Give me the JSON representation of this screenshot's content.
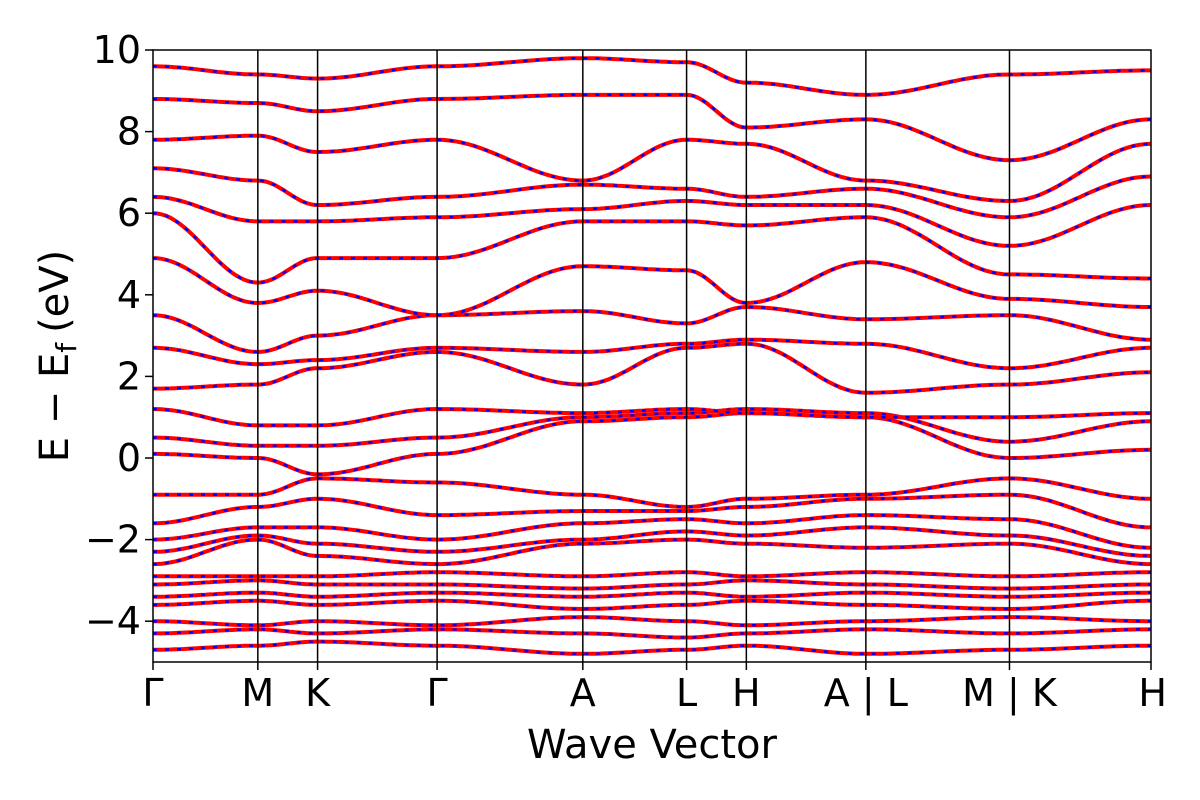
{
  "chart_data": {
    "type": "line",
    "title": "",
    "xlabel": "Wave Vector",
    "ylabel": "E − E_f (eV)",
    "ylabel_parts": {
      "main": "E − E",
      "sub": "f",
      "unit": "(eV)"
    },
    "ylim": [
      -5,
      10
    ],
    "yticks": [
      10,
      8,
      6,
      4,
      2,
      0,
      -2,
      -4
    ],
    "ytick_labels": [
      "10",
      "8",
      "6",
      "4",
      "2",
      "0",
      "−2",
      "−4"
    ],
    "kpath_positions": [
      0,
      1,
      1.57,
      2.71,
      4.1,
      5.09,
      5.66,
      6.8,
      8.17,
      9.52
    ],
    "kpath_labels": [
      "Γ",
      "M",
      "K",
      "Γ",
      "A",
      "L",
      "H",
      "A | L",
      "M | K",
      "H"
    ],
    "grid": false,
    "legend": "none",
    "series": [
      {
        "style": "solid",
        "color": "#ff0000"
      },
      {
        "style": "dotted",
        "color": "#0000ff"
      }
    ],
    "bands": [
      [
        -4.7,
        -4.6,
        -4.5,
        -4.6,
        -4.8,
        -4.7,
        -4.6,
        -4.8,
        -4.7,
        -4.6
      ],
      [
        -4.3,
        -4.2,
        -4.3,
        -4.2,
        -4.3,
        -4.4,
        -4.3,
        -4.2,
        -4.3,
        -4.2
      ],
      [
        -4.0,
        -4.1,
        -4.0,
        -4.1,
        -3.9,
        -4.0,
        -4.1,
        -4.0,
        -3.9,
        -4.0
      ],
      [
        -3.6,
        -3.5,
        -3.6,
        -3.5,
        -3.7,
        -3.6,
        -3.5,
        -3.6,
        -3.7,
        -3.5
      ],
      [
        -3.4,
        -3.3,
        -3.4,
        -3.3,
        -3.4,
        -3.3,
        -3.4,
        -3.3,
        -3.4,
        -3.3
      ],
      [
        -3.1,
        -3.0,
        -3.1,
        -3.1,
        -3.2,
        -3.1,
        -3.0,
        -3.1,
        -3.2,
        -3.1
      ],
      [
        -2.9,
        -2.9,
        -2.9,
        -2.8,
        -2.9,
        -2.8,
        -2.9,
        -2.8,
        -2.9,
        -2.8
      ],
      [
        -2.6,
        -2.0,
        -2.4,
        -2.6,
        -2.1,
        -2.0,
        -2.1,
        -2.2,
        -2.1,
        -2.6
      ],
      [
        -2.3,
        -1.9,
        -2.1,
        -2.3,
        -2.0,
        -1.8,
        -1.9,
        -1.7,
        -1.9,
        -2.4
      ],
      [
        -2.0,
        -1.7,
        -1.7,
        -2.0,
        -1.6,
        -1.5,
        -1.6,
        -1.4,
        -1.5,
        -2.2
      ],
      [
        -1.6,
        -1.2,
        -1.0,
        -1.4,
        -1.3,
        -1.3,
        -1.2,
        -1.0,
        -0.9,
        -1.7
      ],
      [
        -0.9,
        -0.9,
        -0.5,
        -0.6,
        -0.9,
        -1.2,
        -1.0,
        -0.9,
        -0.5,
        -1.0
      ],
      [
        0.1,
        0.0,
        -0.4,
        0.1,
        0.9,
        1.0,
        1.1,
        1.0,
        0.0,
        0.2
      ],
      [
        0.5,
        0.3,
        0.3,
        0.5,
        1.0,
        1.1,
        1.2,
        1.1,
        0.4,
        0.9
      ],
      [
        1.2,
        0.8,
        0.8,
        1.2,
        1.1,
        1.2,
        1.1,
        1.0,
        1.0,
        1.1
      ],
      [
        1.7,
        1.8,
        2.2,
        2.6,
        1.8,
        2.7,
        2.8,
        1.6,
        1.8,
        2.1
      ],
      [
        2.7,
        2.3,
        2.4,
        2.7,
        2.6,
        2.8,
        2.9,
        2.8,
        2.2,
        2.7
      ],
      [
        3.5,
        2.6,
        3.0,
        3.5,
        3.6,
        3.3,
        3.7,
        3.4,
        3.5,
        2.9
      ],
      [
        4.9,
        3.8,
        4.1,
        3.5,
        4.7,
        4.6,
        3.8,
        4.8,
        3.9,
        3.7
      ],
      [
        6.0,
        4.3,
        4.9,
        4.9,
        5.8,
        5.8,
        5.7,
        5.9,
        4.5,
        4.4
      ],
      [
        6.4,
        5.8,
        5.8,
        5.9,
        6.1,
        6.3,
        6.2,
        6.2,
        5.2,
        6.2
      ],
      [
        7.1,
        6.8,
        6.2,
        6.4,
        6.7,
        6.6,
        6.4,
        6.6,
        5.9,
        6.9
      ],
      [
        7.8,
        7.9,
        7.5,
        7.8,
        6.8,
        7.8,
        7.7,
        6.8,
        6.3,
        7.7
      ],
      [
        8.8,
        8.7,
        8.5,
        8.8,
        8.9,
        8.9,
        8.1,
        8.3,
        7.3,
        8.3
      ],
      [
        9.6,
        9.4,
        9.3,
        9.6,
        9.8,
        9.7,
        9.2,
        8.9,
        9.4,
        9.5
      ]
    ]
  }
}
